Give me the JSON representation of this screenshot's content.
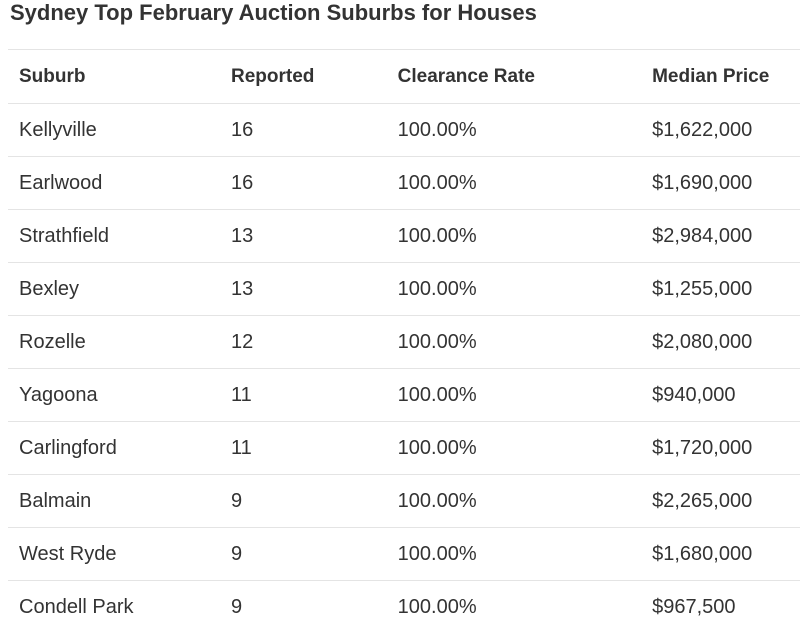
{
  "title": "Sydney Top February Auction Suburbs for Houses",
  "columns": [
    "Suburb",
    "Reported",
    "Clearance Rate",
    "Median Price"
  ],
  "rows": [
    {
      "suburb": "Kellyville",
      "reported": "16",
      "clearance_rate": "100.00%",
      "median_price": "$1,622,000"
    },
    {
      "suburb": "Earlwood",
      "reported": "16",
      "clearance_rate": "100.00%",
      "median_price": "$1,690,000"
    },
    {
      "suburb": "Strathfield",
      "reported": "13",
      "clearance_rate": "100.00%",
      "median_price": "$2,984,000"
    },
    {
      "suburb": "Bexley",
      "reported": "13",
      "clearance_rate": "100.00%",
      "median_price": "$1,255,000"
    },
    {
      "suburb": "Rozelle",
      "reported": "12",
      "clearance_rate": "100.00%",
      "median_price": "$2,080,000"
    },
    {
      "suburb": "Yagoona",
      "reported": "11",
      "clearance_rate": "100.00%",
      "median_price": "$940,000"
    },
    {
      "suburb": "Carlingford",
      "reported": "11",
      "clearance_rate": "100.00%",
      "median_price": "$1,720,000"
    },
    {
      "suburb": "Balmain",
      "reported": "9",
      "clearance_rate": "100.00%",
      "median_price": "$2,265,000"
    },
    {
      "suburb": "West Ryde",
      "reported": "9",
      "clearance_rate": "100.00%",
      "median_price": "$1,680,000"
    },
    {
      "suburb": "Condell Park",
      "reported": "9",
      "clearance_rate": "100.00%",
      "median_price": "$967,500"
    }
  ],
  "colors": {
    "text": "#333333",
    "divider": "#e4e4e4",
    "background": "#ffffff"
  }
}
